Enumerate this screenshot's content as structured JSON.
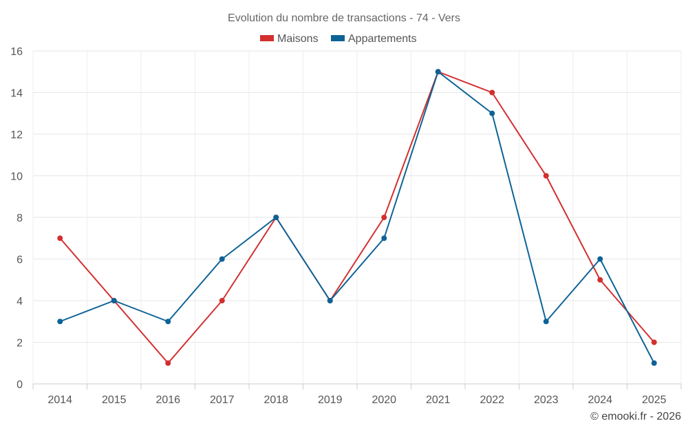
{
  "chart_data": {
    "type": "line",
    "title": "Evolution du nombre de transactions - 74 - Vers",
    "x": [
      "2014",
      "2015",
      "2016",
      "2017",
      "2018",
      "2019",
      "2020",
      "2021",
      "2022",
      "2023",
      "2024",
      "2025"
    ],
    "series": [
      {
        "name": "Maisons",
        "color": "#d32f2f",
        "values": [
          7,
          4,
          1,
          4,
          8,
          4,
          8,
          15,
          14,
          10,
          5,
          2
        ]
      },
      {
        "name": "Appartements",
        "color": "#0d6396",
        "values": [
          3,
          4,
          3,
          6,
          8,
          4,
          7,
          15,
          13,
          3,
          6,
          1
        ]
      }
    ],
    "ylim": [
      0,
      16
    ],
    "yticks": [
      "0",
      "2",
      "4",
      "6",
      "8",
      "10",
      "12",
      "14",
      "16"
    ],
    "xlabel": "",
    "ylabel": "",
    "grid": true,
    "legend": "top-center"
  },
  "credit": "© emooki.fr - 2026"
}
